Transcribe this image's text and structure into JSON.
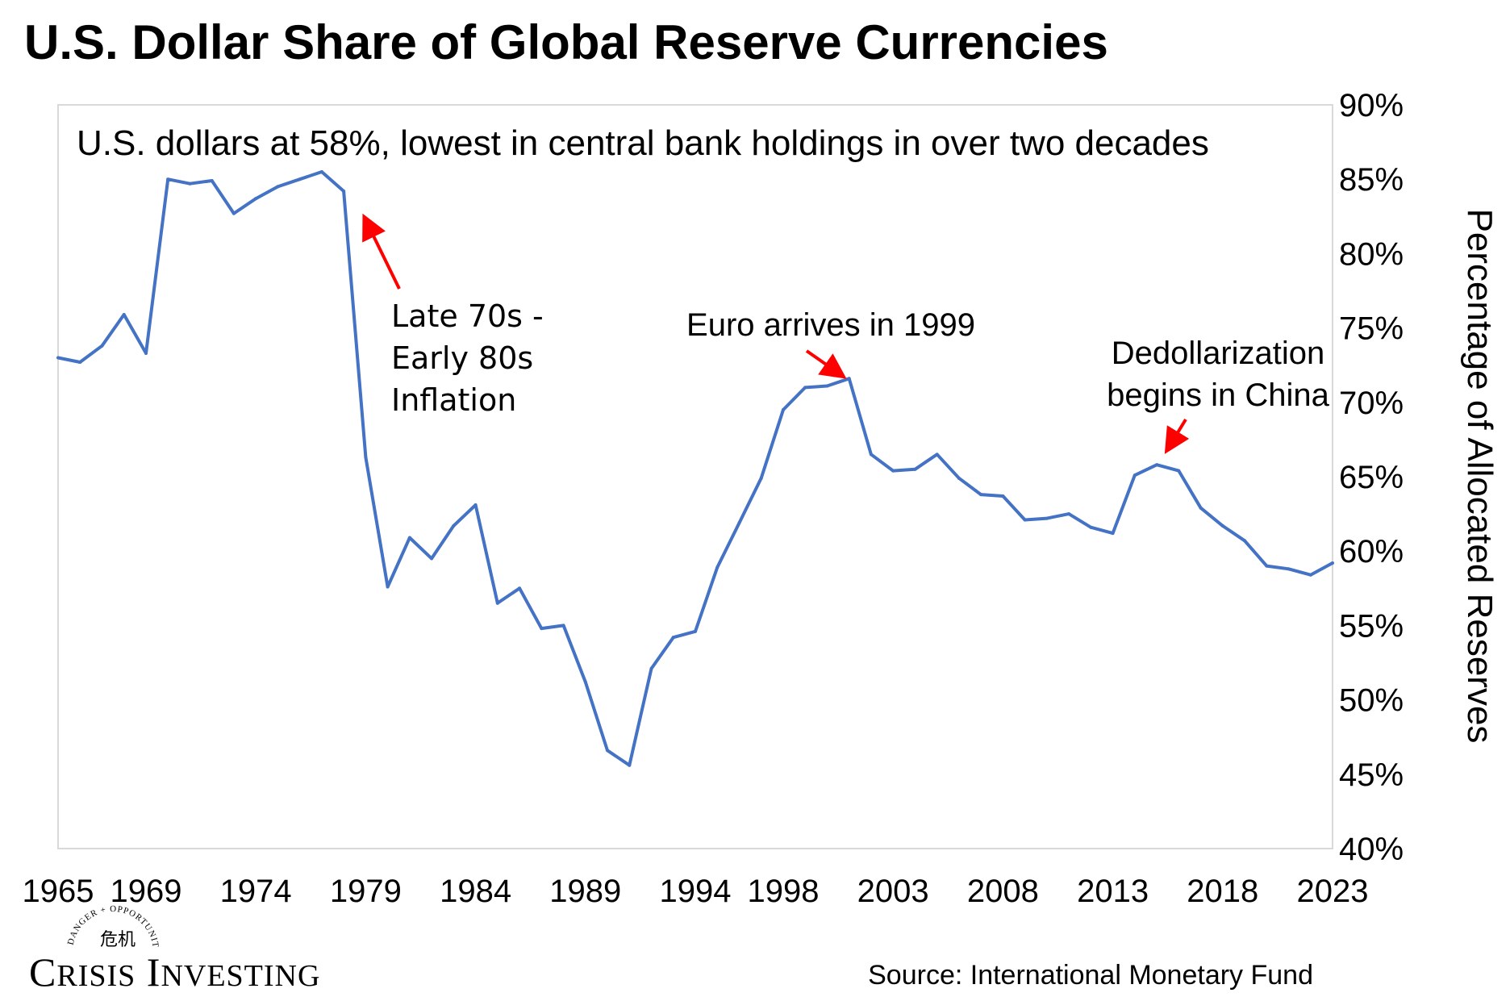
{
  "chart_data": {
    "type": "line",
    "title": "U.S. Dollar Share of Global Reserve Currencies",
    "subtitle": "U.S. dollars at 58%, lowest in central bank holdings in over two decades",
    "ylabel": "Percentage of Allocated Reserves",
    "xlabel": "",
    "ylim": [
      40,
      90
    ],
    "xlim": [
      1965,
      2023
    ],
    "y_axis_side": "right",
    "grid": false,
    "legend": "none",
    "x_ticks": [
      "1965",
      "1969",
      "1974",
      "1979",
      "1984",
      "1989",
      "1994",
      "1998",
      "2003",
      "2008",
      "2013",
      "2018",
      "2023"
    ],
    "y_ticks": [
      "40%",
      "45%",
      "50%",
      "55%",
      "60%",
      "65%",
      "70%",
      "75%",
      "80%",
      "85%",
      "90%"
    ],
    "series": [
      {
        "color": "#4472C4",
        "x": [
          1965,
          1966,
          1967,
          1968,
          1969,
          1970,
          1971,
          1972,
          1973,
          1974,
          1975,
          1976,
          1977,
          1978,
          1979,
          1980,
          1981,
          1982,
          1983,
          1984,
          1985,
          1986,
          1987,
          1988,
          1989,
          1990,
          1991,
          1992,
          1993,
          1994,
          1995,
          1996,
          1997,
          1998,
          1999,
          2000,
          2001,
          2002,
          2003,
          2004,
          2005,
          2006,
          2007,
          2008,
          2009,
          2010,
          2011,
          2012,
          2013,
          2014,
          2015,
          2016,
          2017,
          2018,
          2019,
          2020,
          2021,
          2022,
          2023
        ],
        "values": [
          73.0,
          72.7,
          73.8,
          75.9,
          73.3,
          85.0,
          84.7,
          84.9,
          82.7,
          83.7,
          84.5,
          85.0,
          85.5,
          84.2,
          66.3,
          57.6,
          60.9,
          59.5,
          61.7,
          63.1,
          56.5,
          57.5,
          54.8,
          55.0,
          51.2,
          46.6,
          45.6,
          52.1,
          54.2,
          54.6,
          58.9,
          61.9,
          64.9,
          69.5,
          71.0,
          71.1,
          71.6,
          66.5,
          65.4,
          65.5,
          66.5,
          64.9,
          63.8,
          63.7,
          62.1,
          62.2,
          62.5,
          61.6,
          61.2,
          65.1,
          65.8,
          65.4,
          62.9,
          61.7,
          60.7,
          59.0,
          58.8,
          58.4,
          59.2
        ]
      }
    ],
    "annotations": [
      {
        "text_lines": [
          "Late 70s -",
          "Early 80s",
          "Inflation"
        ],
        "x": 1978,
        "y": 82.5
      },
      {
        "text_lines": [
          "Euro arrives in 1999"
        ],
        "x": 2000,
        "y": 72.0
      },
      {
        "text_lines": [
          "Dedollarization",
          "begins in China"
        ],
        "x": 2015,
        "y": 66.0
      }
    ],
    "annotation_color": "#FF0000"
  },
  "footer": {
    "logo_text": "Crisis Investing",
    "logo_tagline": "DANGER + OPPORTUNITY",
    "logo_chinese": "危机",
    "source": "Source: International Monetary Fund"
  }
}
